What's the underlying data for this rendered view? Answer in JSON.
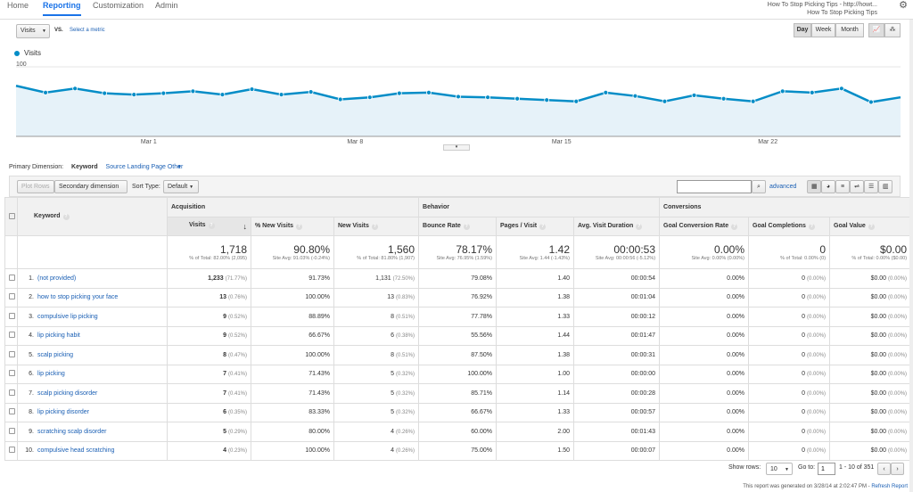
{
  "nav": {
    "tabs": [
      "Home",
      "Reporting",
      "Customization",
      "Admin"
    ],
    "active": "Reporting"
  },
  "account": {
    "line1": "How To Stop Picking Tips - http://howt...",
    "line2": "How To Stop Picking Tips"
  },
  "controls": {
    "metric_select": "Visits",
    "vs": "VS.",
    "select_metric": "Select a metric",
    "day": "Day",
    "week": "Week",
    "month": "Month"
  },
  "chart_data": {
    "type": "area",
    "series": [
      {
        "name": "Visits",
        "values": [
          72,
          62,
          68,
          61,
          59,
          61,
          64,
          59,
          67,
          59,
          63,
          52,
          55,
          61,
          62,
          56,
          55,
          53,
          51,
          49,
          62,
          57,
          49,
          58,
          53,
          49,
          64,
          62,
          68,
          48,
          55
        ]
      }
    ],
    "yticks": [
      "100",
      "50"
    ],
    "ylim": [
      0,
      100
    ],
    "xlabels": [
      "Mar 1",
      "Mar 8",
      "Mar 15",
      "Mar 22"
    ],
    "color": "#058dc7"
  },
  "dimension": {
    "label": "Primary Dimension:",
    "items": [
      "Keyword",
      "Source",
      "Landing Page",
      "Other"
    ]
  },
  "toolbar": {
    "plot_rows": "Plot Rows",
    "secondary_dimension": "Secondary dimension",
    "sort_type_label": "Sort Type:",
    "sort_type": "Default",
    "advanced": "advanced"
  },
  "table": {
    "group_acquisition": "Acquisition",
    "group_behavior": "Behavior",
    "group_conversions": "Conversions",
    "headers": {
      "keyword": "Keyword",
      "visits": "Visits",
      "new_pct": "% New Visits",
      "new_visits": "New Visits",
      "bounce": "Bounce Rate",
      "pages": "Pages / Visit",
      "duration": "Avg. Visit Duration",
      "gcr": "Goal Conversion Rate",
      "gc": "Goal Completions",
      "gv": "Goal Value"
    },
    "totals": {
      "visits": "1,718",
      "visits_sub": "% of Total: 82.00% (2,095)",
      "new_pct": "90.80%",
      "new_pct_sub": "Site Avg: 91.03% (-0.24%)",
      "new_visits": "1,560",
      "new_visits_sub": "% of Total: 81.80% (1,907)",
      "bounce": "78.17%",
      "bounce_sub": "Site Avg: 76.95% (1.59%)",
      "pages": "1.42",
      "pages_sub": "Site Avg: 1.44 (-1.43%)",
      "duration": "00:00:53",
      "duration_sub": "Site Avg: 00:00:56 (-5.12%)",
      "gcr": "0.00%",
      "gcr_sub": "Site Avg: 0.00% (0.00%)",
      "gc": "0",
      "gc_sub": "% of Total: 0.00% (0)",
      "gv": "$0.00",
      "gv_sub": "% of Total: 0.00% ($0.00)"
    },
    "rows": [
      {
        "n": "1.",
        "kw": "(not provided)",
        "v": "1,233",
        "vp": "(71.77%)",
        "np": "91.73%",
        "nv": "1,131",
        "nvp": "(72.50%)",
        "b": "79.08%",
        "p": "1.40",
        "d": "00:00:54",
        "gcr": "0.00%",
        "gc": "0",
        "gcp": "(0.00%)",
        "gv": "$0.00",
        "gvp": "(0.00%)"
      },
      {
        "n": "2.",
        "kw": "how to stop picking your face",
        "v": "13",
        "vp": "(0.76%)",
        "np": "100.00%",
        "nv": "13",
        "nvp": "(0.83%)",
        "b": "76.92%",
        "p": "1.38",
        "d": "00:01:04",
        "gcr": "0.00%",
        "gc": "0",
        "gcp": "(0.00%)",
        "gv": "$0.00",
        "gvp": "(0.00%)"
      },
      {
        "n": "3.",
        "kw": "compulsive lip picking",
        "v": "9",
        "vp": "(0.52%)",
        "np": "88.89%",
        "nv": "8",
        "nvp": "(0.51%)",
        "b": "77.78%",
        "p": "1.33",
        "d": "00:00:12",
        "gcr": "0.00%",
        "gc": "0",
        "gcp": "(0.00%)",
        "gv": "$0.00",
        "gvp": "(0.00%)"
      },
      {
        "n": "4.",
        "kw": "lip picking habit",
        "v": "9",
        "vp": "(0.52%)",
        "np": "66.67%",
        "nv": "6",
        "nvp": "(0.38%)",
        "b": "55.56%",
        "p": "1.44",
        "d": "00:01:47",
        "gcr": "0.00%",
        "gc": "0",
        "gcp": "(0.00%)",
        "gv": "$0.00",
        "gvp": "(0.00%)"
      },
      {
        "n": "5.",
        "kw": "scalp picking",
        "v": "8",
        "vp": "(0.47%)",
        "np": "100.00%",
        "nv": "8",
        "nvp": "(0.51%)",
        "b": "87.50%",
        "p": "1.38",
        "d": "00:00:31",
        "gcr": "0.00%",
        "gc": "0",
        "gcp": "(0.00%)",
        "gv": "$0.00",
        "gvp": "(0.00%)"
      },
      {
        "n": "6.",
        "kw": "lip picking",
        "v": "7",
        "vp": "(0.41%)",
        "np": "71.43%",
        "nv": "5",
        "nvp": "(0.32%)",
        "b": "100.00%",
        "p": "1.00",
        "d": "00:00:00",
        "gcr": "0.00%",
        "gc": "0",
        "gcp": "(0.00%)",
        "gv": "$0.00",
        "gvp": "(0.00%)"
      },
      {
        "n": "7.",
        "kw": "scalp picking disorder",
        "v": "7",
        "vp": "(0.41%)",
        "np": "71.43%",
        "nv": "5",
        "nvp": "(0.32%)",
        "b": "85.71%",
        "p": "1.14",
        "d": "00:00:28",
        "gcr": "0.00%",
        "gc": "0",
        "gcp": "(0.00%)",
        "gv": "$0.00",
        "gvp": "(0.00%)"
      },
      {
        "n": "8.",
        "kw": "lip picking disorder",
        "v": "6",
        "vp": "(0.35%)",
        "np": "83.33%",
        "nv": "5",
        "nvp": "(0.32%)",
        "b": "66.67%",
        "p": "1.33",
        "d": "00:00:57",
        "gcr": "0.00%",
        "gc": "0",
        "gcp": "(0.00%)",
        "gv": "$0.00",
        "gvp": "(0.00%)"
      },
      {
        "n": "9.",
        "kw": "scratching scalp disorder",
        "v": "5",
        "vp": "(0.29%)",
        "np": "80.00%",
        "nv": "4",
        "nvp": "(0.26%)",
        "b": "60.00%",
        "p": "2.00",
        "d": "00:01:43",
        "gcr": "0.00%",
        "gc": "0",
        "gcp": "(0.00%)",
        "gv": "$0.00",
        "gvp": "(0.00%)"
      },
      {
        "n": "10.",
        "kw": "compulsive head scratching",
        "v": "4",
        "vp": "(0.23%)",
        "np": "100.00%",
        "nv": "4",
        "nvp": "(0.26%)",
        "b": "75.00%",
        "p": "1.50",
        "d": "00:00:07",
        "gcr": "0.00%",
        "gc": "0",
        "gcp": "(0.00%)",
        "gv": "$0.00",
        "gvp": "(0.00%)"
      }
    ]
  },
  "footer": {
    "show_rows_label": "Show rows:",
    "show_rows": "10",
    "goto_label": "Go to:",
    "goto": "1",
    "range": "1 - 10 of 351",
    "generated": "This report was generated on 3/28/14 at 2:02:47 PM -",
    "refresh": "Refresh Report"
  }
}
